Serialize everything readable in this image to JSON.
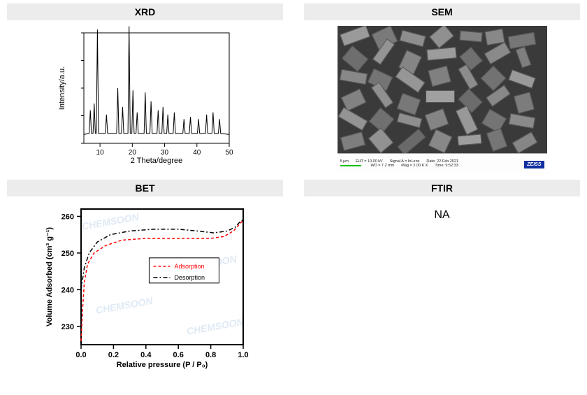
{
  "panels": {
    "xrd": {
      "title": "XRD"
    },
    "sem": {
      "title": "SEM"
    },
    "bet": {
      "title": "BET"
    },
    "ftir": {
      "title": "FTIR",
      "content": "NA"
    }
  },
  "xrd_chart": {
    "type": "line",
    "xlabel": "2 Theta/degree",
    "ylabel": "Intensity/a.u.",
    "label_fontsize": 11,
    "line_color": "#000000",
    "line_width": 1,
    "background_color": "#ffffff",
    "border_color": "#000000",
    "xlim": [
      5,
      50
    ],
    "xticks": [
      10,
      20,
      30,
      40,
      50
    ],
    "ylim": [
      0,
      100
    ],
    "peaks": [
      {
        "x": 7.0,
        "h": 22
      },
      {
        "x": 8.2,
        "h": 28
      },
      {
        "x": 9.2,
        "h": 95
      },
      {
        "x": 12.0,
        "h": 18
      },
      {
        "x": 15.5,
        "h": 42
      },
      {
        "x": 17.0,
        "h": 25
      },
      {
        "x": 19.0,
        "h": 98
      },
      {
        "x": 20.2,
        "h": 40
      },
      {
        "x": 21.5,
        "h": 20
      },
      {
        "x": 24.0,
        "h": 38
      },
      {
        "x": 25.8,
        "h": 30
      },
      {
        "x": 28.0,
        "h": 22
      },
      {
        "x": 29.5,
        "h": 25
      },
      {
        "x": 31.0,
        "h": 18
      },
      {
        "x": 33.0,
        "h": 20
      },
      {
        "x": 36.0,
        "h": 14
      },
      {
        "x": 38.0,
        "h": 16
      },
      {
        "x": 40.5,
        "h": 14
      },
      {
        "x": 43.0,
        "h": 18
      },
      {
        "x": 45.0,
        "h": 20
      },
      {
        "x": 47.0,
        "h": 14
      }
    ],
    "baseline": 8
  },
  "bet_chart": {
    "type": "line",
    "xlabel": "Relative pressure (P / P₀)",
    "ylabel": "Volume Adsorbed (cm³ g⁻¹)",
    "label_fontsize": 11,
    "background_color": "#ffffff",
    "border_color": "#000000",
    "border_width": 2,
    "xlim": [
      0.0,
      1.0
    ],
    "xticks": [
      0.0,
      0.2,
      0.4,
      0.6,
      0.8,
      1.0
    ],
    "ylim": [
      225,
      262
    ],
    "yticks": [
      230,
      240,
      250,
      260
    ],
    "legend": {
      "items": [
        {
          "label": "Adsorption",
          "color": "#ff0000",
          "dash": "4 3"
        },
        {
          "label": "Desorption",
          "color": "#000000",
          "dash": "6 3 2 3"
        }
      ],
      "box_border": "#000000"
    },
    "series": {
      "adsorption": {
        "color": "#ff0000",
        "dash": "4 3",
        "width": 1.5,
        "points": [
          [
            0.0,
            226
          ],
          [
            0.01,
            235
          ],
          [
            0.02,
            242
          ],
          [
            0.04,
            247
          ],
          [
            0.08,
            250
          ],
          [
            0.15,
            252
          ],
          [
            0.25,
            253.5
          ],
          [
            0.4,
            254
          ],
          [
            0.55,
            254
          ],
          [
            0.7,
            254
          ],
          [
            0.8,
            254
          ],
          [
            0.88,
            254.5
          ],
          [
            0.94,
            256
          ],
          [
            0.98,
            258
          ],
          [
            1.0,
            259
          ]
        ]
      },
      "desorption": {
        "color": "#000000",
        "dash": "6 3 2 3",
        "width": 1.5,
        "points": [
          [
            0.0,
            240
          ],
          [
            0.02,
            246
          ],
          [
            0.05,
            250
          ],
          [
            0.1,
            253
          ],
          [
            0.18,
            255
          ],
          [
            0.3,
            256
          ],
          [
            0.45,
            256.5
          ],
          [
            0.6,
            256.5
          ],
          [
            0.72,
            256
          ],
          [
            0.82,
            255.5
          ],
          [
            0.9,
            256
          ],
          [
            0.95,
            257
          ],
          [
            0.98,
            258.5
          ],
          [
            1.0,
            259
          ]
        ]
      }
    },
    "watermark": "CHEMSOON",
    "watermark_color": "#dfeaf5"
  },
  "sem_caption": {
    "scale_label": "5 µm",
    "eht": "EHT = 10.00 kV",
    "signal": "Signal A = InLens",
    "date": "Date: 22 Feb 2021",
    "wd": "WD = 7.2 mm",
    "mag": "Mag = 2.00 K X",
    "time": "Time: 9:52:33",
    "logo": "ZEISS",
    "logo_bg": "#1030a0",
    "logo_fg": "#ffffff",
    "caption_bg": "#fdfdfd",
    "scale_color": "#00c000"
  },
  "sem_crystals": [
    {
      "l": 5,
      "t": 5,
      "w": 40,
      "h": 18,
      "r": -20,
      "c": "#9a9a9a"
    },
    {
      "l": 55,
      "t": 2,
      "w": 25,
      "h": 30,
      "r": 65,
      "c": "#7a7a7a"
    },
    {
      "l": 90,
      "t": 10,
      "w": 35,
      "h": 16,
      "r": 15,
      "c": "#8e8e8e"
    },
    {
      "l": 135,
      "t": 4,
      "w": 28,
      "h": 22,
      "r": -40,
      "c": "#909090"
    },
    {
      "l": 175,
      "t": 8,
      "w": 32,
      "h": 14,
      "r": 5,
      "c": "#828282"
    },
    {
      "l": 215,
      "t": 3,
      "w": 20,
      "h": 26,
      "r": 80,
      "c": "#888888"
    },
    {
      "l": 245,
      "t": 12,
      "w": 38,
      "h": 18,
      "r": -10,
      "c": "#767676"
    },
    {
      "l": 10,
      "t": 35,
      "w": 30,
      "h": 24,
      "r": 40,
      "c": "#6e6e6e"
    },
    {
      "l": 48,
      "t": 30,
      "w": 36,
      "h": 14,
      "r": -55,
      "c": "#949494"
    },
    {
      "l": 92,
      "t": 38,
      "w": 24,
      "h": 28,
      "r": 25,
      "c": "#858585"
    },
    {
      "l": 128,
      "t": 32,
      "w": 42,
      "h": 16,
      "r": -5,
      "c": "#9c9c9c"
    },
    {
      "l": 178,
      "t": 36,
      "w": 26,
      "h": 22,
      "r": 50,
      "c": "#707070"
    },
    {
      "l": 212,
      "t": 30,
      "w": 34,
      "h": 18,
      "r": -30,
      "c": "#8a8a8a"
    },
    {
      "l": 252,
      "t": 38,
      "w": 28,
      "h": 14,
      "r": 70,
      "c": "#7e7e7e"
    },
    {
      "l": 4,
      "t": 65,
      "w": 38,
      "h": 16,
      "r": 10,
      "c": "#888888"
    },
    {
      "l": 50,
      "t": 62,
      "w": 22,
      "h": 30,
      "r": -65,
      "c": "#747474"
    },
    {
      "l": 84,
      "t": 68,
      "w": 40,
      "h": 18,
      "r": 35,
      "c": "#969696"
    },
    {
      "l": 132,
      "t": 60,
      "w": 28,
      "h": 24,
      "r": -15,
      "c": "#808080"
    },
    {
      "l": 170,
      "t": 66,
      "w": 34,
      "h": 14,
      "r": 60,
      "c": "#8c8c8c"
    },
    {
      "l": 210,
      "t": 62,
      "w": 26,
      "h": 26,
      "r": -45,
      "c": "#727272"
    },
    {
      "l": 246,
      "t": 68,
      "w": 36,
      "h": 16,
      "r": 20,
      "c": "#9a9a9a"
    },
    {
      "l": 8,
      "t": 95,
      "w": 30,
      "h": 22,
      "r": -25,
      "c": "#828282"
    },
    {
      "l": 46,
      "t": 92,
      "w": 36,
      "h": 14,
      "r": 55,
      "c": "#909090"
    },
    {
      "l": 90,
      "t": 98,
      "w": 24,
      "h": 28,
      "r": -70,
      "c": "#787878"
    },
    {
      "l": 126,
      "t": 92,
      "w": 42,
      "h": 18,
      "r": 0,
      "c": "#a0a0a0"
    },
    {
      "l": 176,
      "t": 96,
      "w": 28,
      "h": 22,
      "r": 45,
      "c": "#6c6c6c"
    },
    {
      "l": 214,
      "t": 92,
      "w": 32,
      "h": 16,
      "r": -35,
      "c": "#888888"
    },
    {
      "l": 254,
      "t": 98,
      "w": 26,
      "h": 24,
      "r": 75,
      "c": "#7c7c7c"
    },
    {
      "l": 2,
      "t": 125,
      "w": 40,
      "h": 16,
      "r": 30,
      "c": "#949494"
    },
    {
      "l": 50,
      "t": 122,
      "w": 26,
      "h": 26,
      "r": -50,
      "c": "#707070"
    },
    {
      "l": 86,
      "t": 128,
      "w": 34,
      "h": 14,
      "r": 15,
      "c": "#8e8e8e"
    },
    {
      "l": 128,
      "t": 122,
      "w": 28,
      "h": 24,
      "r": -20,
      "c": "#848484"
    },
    {
      "l": 166,
      "t": 126,
      "w": 38,
      "h": 18,
      "r": 65,
      "c": "#989898"
    },
    {
      "l": 212,
      "t": 122,
      "w": 24,
      "h": 28,
      "r": -60,
      "c": "#747474"
    },
    {
      "l": 246,
      "t": 128,
      "w": 36,
      "h": 16,
      "r": 10,
      "c": "#8a8a8a"
    },
    {
      "l": 6,
      "t": 155,
      "w": 32,
      "h": 20,
      "r": -15,
      "c": "#7e7e7e"
    },
    {
      "l": 48,
      "t": 152,
      "w": 28,
      "h": 24,
      "r": 50,
      "c": "#929292"
    },
    {
      "l": 86,
      "t": 158,
      "w": 40,
      "h": 16,
      "r": -40,
      "c": "#6a6a6a"
    },
    {
      "l": 134,
      "t": 152,
      "w": 26,
      "h": 26,
      "r": 25,
      "c": "#888888"
    },
    {
      "l": 172,
      "t": 156,
      "w": 34,
      "h": 14,
      "r": -5,
      "c": "#9e9e9e"
    },
    {
      "l": 214,
      "t": 152,
      "w": 28,
      "h": 22,
      "r": 70,
      "c": "#767676"
    },
    {
      "l": 252,
      "t": 158,
      "w": 32,
      "h": 18,
      "r": -30,
      "c": "#868686"
    }
  ]
}
